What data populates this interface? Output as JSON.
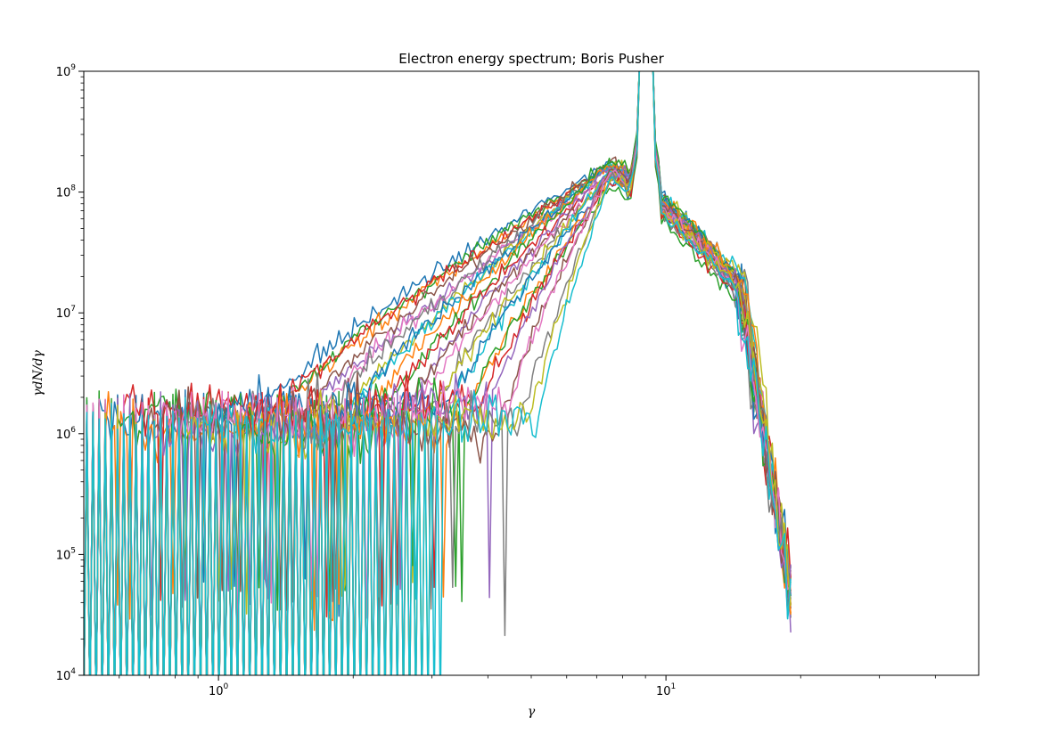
{
  "chart_data": {
    "type": "line",
    "title": "Electron energy spectrum; Boris Pusher",
    "xlabel": "γ",
    "ylabel": "γdN/dγ",
    "xscale": "log",
    "yscale": "log",
    "xlim": [
      0.5,
      50
    ],
    "ylim": [
      10000,
      1000000000
    ],
    "grid": false,
    "legend": "none",
    "x_ticks_major": [
      {
        "value": 1,
        "base": "10",
        "exp": "0"
      },
      {
        "value": 10,
        "base": "10",
        "exp": "1"
      }
    ],
    "y_ticks_major": [
      {
        "value": 10000,
        "base": "10",
        "exp": "4"
      },
      {
        "value": 100000,
        "base": "10",
        "exp": "5"
      },
      {
        "value": 1000000,
        "base": "10",
        "exp": "6"
      },
      {
        "value": 10000000,
        "base": "10",
        "exp": "7"
      },
      {
        "value": 100000000,
        "base": "10",
        "exp": "8"
      },
      {
        "value": 1000000000,
        "base": "10",
        "exp": "9"
      }
    ],
    "colors": [
      "#1f77b4",
      "#ff7f0e",
      "#2ca02c",
      "#d62728",
      "#9467bd",
      "#8c564b",
      "#e377c2",
      "#7f7f7f",
      "#bcbd22",
      "#17becf"
    ],
    "series_count": 30,
    "series_profile": {
      "x_min": 0.5,
      "x_max": 19,
      "low_energy_level_range": [
        1000000,
        1800000
      ],
      "broad_peak_gamma": 7.5,
      "broad_peak_level": 170000000,
      "narrow_spike_gamma": 9,
      "narrow_spike_level": 1000000000,
      "high_energy_cutoff_gamma": 19,
      "high_energy_level_at_cutoff": 50000
    }
  }
}
